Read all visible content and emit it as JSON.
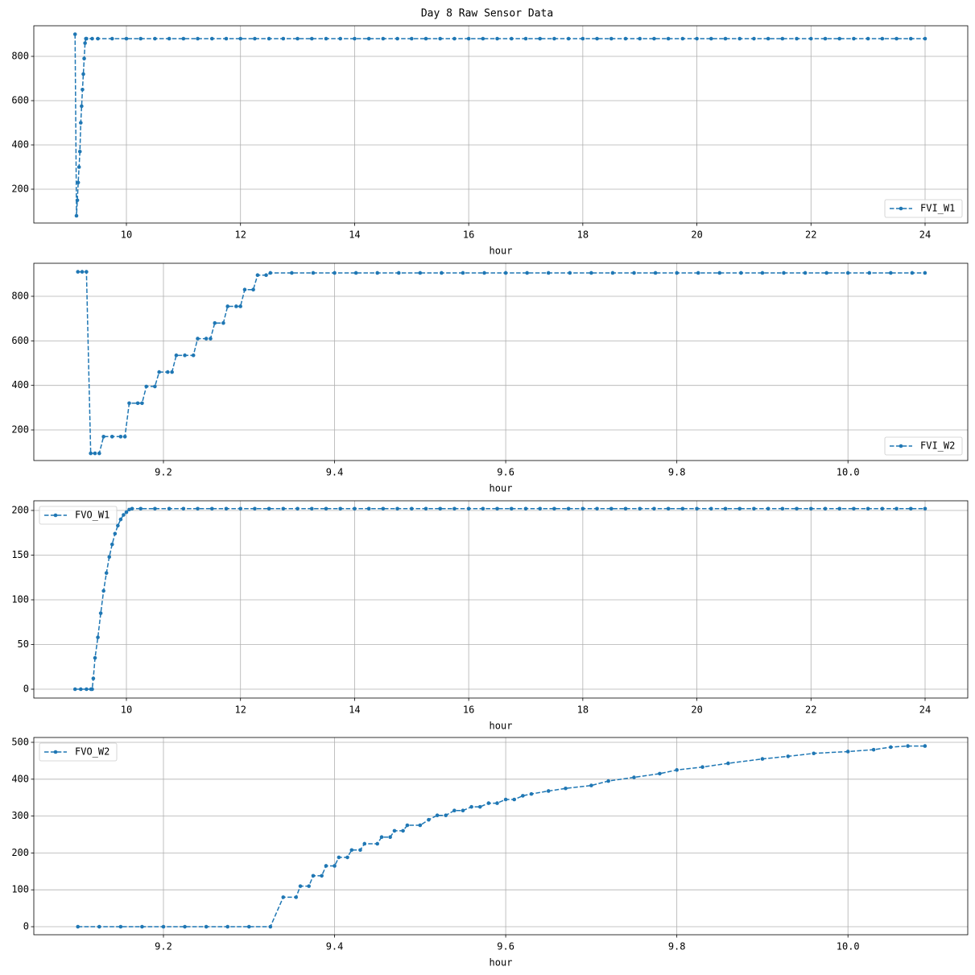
{
  "title": "Day 8 Raw Sensor Data",
  "chart_data": [
    {
      "type": "line",
      "xlabel": "hour",
      "legend": "lower right",
      "grid": true,
      "xlim": [
        8.377,
        24.748
      ],
      "ylim": [
        47.3,
        938.2
      ],
      "xticks": [
        10,
        12,
        14,
        16,
        18,
        20,
        22,
        24
      ],
      "yticks": [
        200,
        400,
        600,
        800
      ],
      "x": [
        9.1,
        9.125,
        9.14,
        9.155,
        9.17,
        9.185,
        9.2,
        9.215,
        9.23,
        9.245,
        9.26,
        9.275,
        9.29,
        9.3,
        9.4,
        9.5,
        9.75,
        10,
        10.25,
        10.5,
        10.75,
        11,
        11.25,
        11.5,
        11.75,
        12,
        12.25,
        12.5,
        12.75,
        13,
        13.25,
        13.5,
        13.75,
        14,
        14.25,
        14.5,
        14.75,
        15,
        15.25,
        15.5,
        15.75,
        16,
        16.25,
        16.5,
        16.75,
        17,
        17.25,
        17.5,
        17.75,
        18,
        18.25,
        18.5,
        18.75,
        19,
        19.25,
        19.5,
        19.75,
        20,
        20.25,
        20.5,
        20.75,
        21,
        21.25,
        21.5,
        21.75,
        22,
        22.25,
        22.5,
        22.75,
        23,
        23.25,
        23.5,
        23.75,
        24
      ],
      "series": [
        {
          "name": "FVI_W1",
          "color": "#1f77b4",
          "values": [
            900,
            80,
            150,
            230,
            300,
            370,
            500,
            575,
            650,
            720,
            790,
            860,
            880,
            880,
            880,
            880,
            880,
            880,
            880,
            880,
            880,
            880,
            880,
            880,
            880,
            880,
            880,
            880,
            880,
            880,
            880,
            880,
            880,
            880,
            880,
            880,
            880,
            880,
            880,
            880,
            880,
            880,
            880,
            880,
            880,
            880,
            880,
            880,
            880,
            880,
            880,
            880,
            880,
            880,
            880,
            880,
            880,
            880,
            880,
            880,
            880,
            880,
            880,
            880,
            880,
            880,
            880,
            880,
            880,
            880,
            880,
            880,
            880,
            880
          ]
        }
      ]
    },
    {
      "type": "line",
      "xlabel": "hour",
      "legend": "lower right",
      "grid": true,
      "xlim": [
        9.0485,
        10.14
      ],
      "ylim": [
        62.7,
        948.2
      ],
      "xticks": [
        9.2,
        9.4,
        9.6,
        9.8,
        {
          "value": 10,
          "label": "10.0"
        }
      ],
      "yticks": [
        200,
        400,
        600,
        800
      ],
      "x": [
        9.1,
        9.105,
        9.11,
        9.115,
        9.12,
        9.125,
        9.13,
        9.14,
        9.15,
        9.155,
        9.16,
        9.17,
        9.175,
        9.18,
        9.19,
        9.195,
        9.205,
        9.21,
        9.215,
        9.225,
        9.235,
        9.24,
        9.25,
        9.255,
        9.26,
        9.27,
        9.275,
        9.285,
        9.29,
        9.295,
        9.305,
        9.31,
        9.32,
        9.325,
        9.35,
        9.375,
        9.4,
        9.425,
        9.45,
        9.475,
        9.5,
        9.525,
        9.55,
        9.575,
        9.6,
        9.625,
        9.65,
        9.675,
        9.7,
        9.725,
        9.75,
        9.775,
        9.8,
        9.825,
        9.85,
        9.875,
        9.9,
        9.925,
        9.95,
        9.975,
        10,
        10.025,
        10.05,
        10.075,
        10.09
      ],
      "series": [
        {
          "name": "FVI_W2",
          "color": "#1f77b4",
          "values": [
            910,
            910,
            910,
            95,
            95,
            95,
            170,
            170,
            170,
            170,
            320,
            320,
            320,
            395,
            395,
            460,
            460,
            460,
            535,
            535,
            535,
            610,
            610,
            610,
            680,
            680,
            755,
            755,
            755,
            830,
            830,
            895,
            895,
            905,
            905,
            905,
            905,
            905,
            905,
            905,
            905,
            905,
            905,
            905,
            905,
            905,
            905,
            905,
            905,
            905,
            905,
            905,
            905,
            905,
            905,
            905,
            905,
            905,
            905,
            905,
            905,
            905,
            905,
            905,
            905
          ]
        }
      ]
    },
    {
      "type": "line",
      "xlabel": "hour",
      "legend": "upper left",
      "grid": true,
      "xlim": [
        8.377,
        24.748
      ],
      "ylim": [
        -9.9,
        210.8
      ],
      "xticks": [
        10,
        12,
        14,
        16,
        18,
        20,
        22,
        24
      ],
      "yticks": [
        0,
        50,
        100,
        150,
        200
      ],
      "x": [
        9.1,
        9.2,
        9.3,
        9.38,
        9.4,
        9.42,
        9.45,
        9.5,
        9.55,
        9.6,
        9.65,
        9.7,
        9.75,
        9.8,
        9.85,
        9.9,
        9.95,
        10,
        10.05,
        10.1,
        10.25,
        10.5,
        10.75,
        11,
        11.25,
        11.5,
        11.75,
        12,
        12.25,
        12.5,
        12.75,
        13,
        13.25,
        13.5,
        13.75,
        14,
        14.25,
        14.5,
        14.75,
        15,
        15.25,
        15.5,
        15.75,
        16,
        16.25,
        16.5,
        16.75,
        17,
        17.25,
        17.5,
        17.75,
        18,
        18.25,
        18.5,
        18.75,
        19,
        19.25,
        19.5,
        19.75,
        20,
        20.25,
        20.5,
        20.75,
        21,
        21.25,
        21.5,
        21.75,
        22,
        22.25,
        22.5,
        22.75,
        23,
        23.25,
        23.5,
        23.75,
        24
      ],
      "series": [
        {
          "name": "FVO_W1",
          "color": "#1f77b4",
          "values": [
            0,
            0,
            0,
            0,
            0,
            12,
            35,
            58,
            85,
            110,
            130,
            148,
            162,
            174,
            183,
            190,
            195,
            198,
            201,
            202,
            202,
            202,
            202,
            202,
            202,
            202,
            202,
            202,
            202,
            202,
            202,
            202,
            202,
            202,
            202,
            202,
            202,
            202,
            202,
            202,
            202,
            202,
            202,
            202,
            202,
            202,
            202,
            202,
            202,
            202,
            202,
            202,
            202,
            202,
            202,
            202,
            202,
            202,
            202,
            202,
            202,
            202,
            202,
            202,
            202,
            202,
            202,
            202,
            202,
            202,
            202,
            202,
            202,
            202,
            202,
            202
          ]
        }
      ]
    },
    {
      "type": "line",
      "xlabel": "hour",
      "legend": "upper left",
      "grid": true,
      "xlim": [
        9.0485,
        10.14
      ],
      "ylim": [
        -21.8,
        513.1
      ],
      "xticks": [
        9.2,
        9.4,
        9.6,
        9.8,
        {
          "value": 10,
          "label": "10.0"
        }
      ],
      "yticks": [
        0,
        100,
        200,
        300,
        400,
        500
      ],
      "x": [
        9.1,
        9.125,
        9.15,
        9.175,
        9.2,
        9.225,
        9.25,
        9.275,
        9.3,
        9.325,
        9.34,
        9.355,
        9.36,
        9.37,
        9.375,
        9.385,
        9.39,
        9.4,
        9.405,
        9.415,
        9.42,
        9.43,
        9.435,
        9.45,
        9.455,
        9.465,
        9.47,
        9.48,
        9.485,
        9.5,
        9.51,
        9.52,
        9.53,
        9.54,
        9.55,
        9.56,
        9.57,
        9.58,
        9.59,
        9.6,
        9.61,
        9.62,
        9.63,
        9.65,
        9.67,
        9.7,
        9.72,
        9.75,
        9.78,
        9.8,
        9.83,
        9.86,
        9.9,
        9.93,
        9.96,
        10,
        10.03,
        10.05,
        10.07,
        10.09
      ],
      "series": [
        {
          "name": "FVO_W2",
          "color": "#1f77b4",
          "values": [
            0,
            0,
            0,
            0,
            0,
            0,
            0,
            0,
            0,
            0,
            80,
            80,
            110,
            110,
            138,
            138,
            165,
            165,
            188,
            188,
            208,
            208,
            225,
            225,
            243,
            243,
            260,
            260,
            275,
            275,
            290,
            302,
            302,
            315,
            315,
            325,
            325,
            335,
            335,
            345,
            345,
            355,
            360,
            368,
            375,
            383,
            395,
            405,
            415,
            425,
            433,
            443,
            455,
            462,
            470,
            475,
            480,
            487,
            490,
            490
          ]
        }
      ]
    }
  ]
}
